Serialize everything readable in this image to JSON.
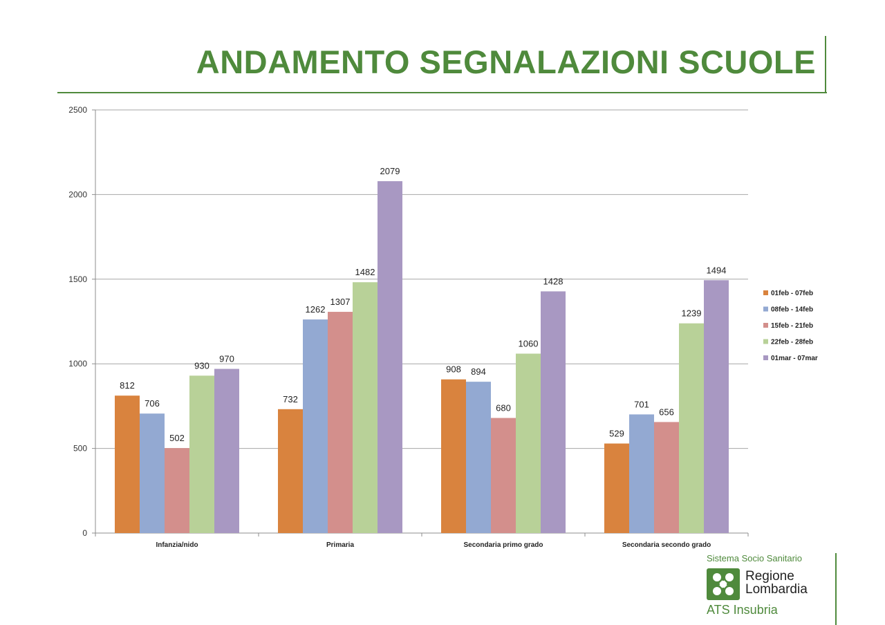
{
  "slide": {
    "title": "ANDAMENTO SEGNALAZIONI SCUOLE"
  },
  "chart_data": {
    "type": "bar",
    "title": "",
    "xlabel": "",
    "ylabel": "",
    "ylim": [
      0,
      2500
    ],
    "yticks": [
      0,
      500,
      1000,
      1500,
      2000,
      2500
    ],
    "grid": true,
    "legend_position": "right",
    "data_labels": true,
    "categories": [
      "Infanzia/nido",
      "Primaria",
      "Secondaria primo grado",
      "Secondaria secondo grado"
    ],
    "series": [
      {
        "name": "01feb - 07feb",
        "color": "#d9833e",
        "values": [
          812,
          732,
          908,
          529
        ]
      },
      {
        "name": "08feb - 14feb",
        "color": "#93a9d2",
        "values": [
          706,
          1262,
          894,
          701
        ]
      },
      {
        "name": "15feb - 21feb",
        "color": "#d38f8c",
        "values": [
          502,
          1307,
          680,
          656
        ]
      },
      {
        "name": "22feb - 28feb",
        "color": "#b8d198",
        "values": [
          930,
          1482,
          1060,
          1239
        ]
      },
      {
        "name": "01mar - 07mar",
        "color": "#a898c2",
        "values": [
          970,
          2079,
          1428,
          1494
        ]
      }
    ]
  },
  "footer": {
    "tagline": "Sistema Socio Sanitario",
    "logo_line1": "Regione",
    "logo_line2": "Lombardia",
    "organization": "ATS Insubria",
    "brand_color": "#4f8a3c"
  }
}
